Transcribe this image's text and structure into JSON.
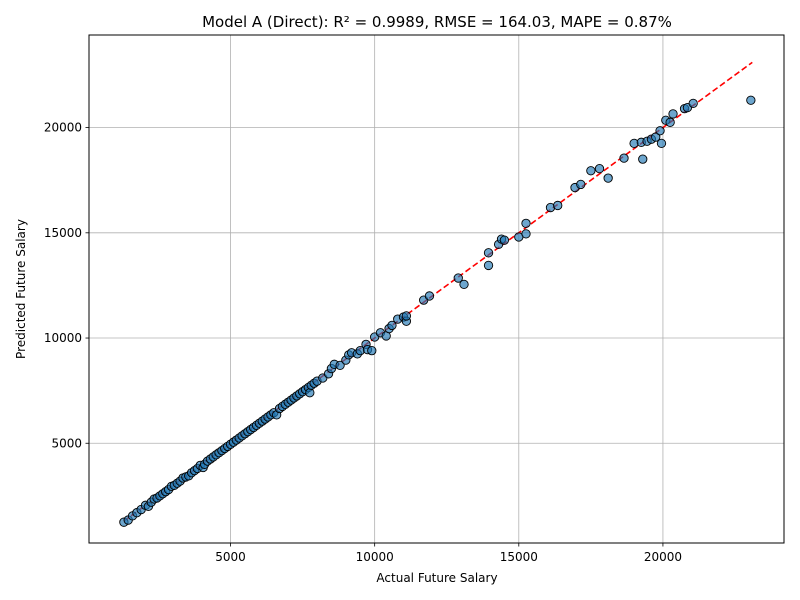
{
  "chart_data": {
    "type": "scatter",
    "title": "Model A (Direct): R² = 0.9989, RMSE = 164.03, MAPE = 0.87%",
    "xlabel": "Actual Future Salary",
    "ylabel": "Predicted Future Salary",
    "xlim": [
      90,
      24200
    ],
    "ylim": [
      260,
      24400
    ],
    "xticks": [
      5000,
      10000,
      15000,
      20000
    ],
    "yticks": [
      5000,
      10000,
      15000,
      20000
    ],
    "xtick_labels": [
      "5000",
      "10000",
      "15000",
      "20000"
    ],
    "ytick_labels": [
      "5000",
      "10000",
      "15000",
      "20000"
    ],
    "grid": true,
    "point_color": "#1f77b4",
    "point_edge_color": "#000000",
    "reference_line": {
      "x": [
        1300,
        23100
      ],
      "y": [
        1300,
        23100
      ],
      "color": "#ff0000",
      "style": "dashed"
    },
    "points": [
      [
        1300,
        1250
      ],
      [
        1450,
        1350
      ],
      [
        1600,
        1550
      ],
      [
        1750,
        1700
      ],
      [
        1900,
        1850
      ],
      [
        2050,
        2050
      ],
      [
        2150,
        2000
      ],
      [
        2250,
        2200
      ],
      [
        2350,
        2350
      ],
      [
        2450,
        2400
      ],
      [
        2550,
        2500
      ],
      [
        2650,
        2600
      ],
      [
        2750,
        2700
      ],
      [
        2850,
        2800
      ],
      [
        2950,
        2950
      ],
      [
        3050,
        3000
      ],
      [
        3150,
        3100
      ],
      [
        3250,
        3200
      ],
      [
        3350,
        3350
      ],
      [
        3450,
        3400
      ],
      [
        3550,
        3450
      ],
      [
        3650,
        3600
      ],
      [
        3750,
        3700
      ],
      [
        3850,
        3800
      ],
      [
        3950,
        3950
      ],
      [
        4050,
        3850
      ],
      [
        4100,
        4000
      ],
      [
        4200,
        4150
      ],
      [
        4300,
        4250
      ],
      [
        4400,
        4350
      ],
      [
        4500,
        4450
      ],
      [
        4600,
        4550
      ],
      [
        4700,
        4650
      ],
      [
        4800,
        4750
      ],
      [
        4900,
        4850
      ],
      [
        5000,
        4950
      ],
      [
        5100,
        5050
      ],
      [
        5200,
        5150
      ],
      [
        5300,
        5250
      ],
      [
        5400,
        5350
      ],
      [
        5500,
        5450
      ],
      [
        5600,
        5550
      ],
      [
        5700,
        5650
      ],
      [
        5800,
        5750
      ],
      [
        5900,
        5850
      ],
      [
        6000,
        5950
      ],
      [
        6100,
        6050
      ],
      [
        6200,
        6150
      ],
      [
        6300,
        6250
      ],
      [
        6400,
        6350
      ],
      [
        6500,
        6450
      ],
      [
        6600,
        6350
      ],
      [
        6700,
        6650
      ],
      [
        6800,
        6750
      ],
      [
        6900,
        6850
      ],
      [
        7000,
        6950
      ],
      [
        7100,
        7050
      ],
      [
        7200,
        7150
      ],
      [
        7300,
        7250
      ],
      [
        7400,
        7350
      ],
      [
        7500,
        7450
      ],
      [
        7600,
        7550
      ],
      [
        7700,
        7650
      ],
      [
        7750,
        7400
      ],
      [
        7800,
        7750
      ],
      [
        7900,
        7850
      ],
      [
        8000,
        7950
      ],
      [
        8200,
        8100
      ],
      [
        8400,
        8300
      ],
      [
        8500,
        8550
      ],
      [
        8600,
        8750
      ],
      [
        8800,
        8700
      ],
      [
        9000,
        8950
      ],
      [
        9100,
        9200
      ],
      [
        9200,
        9300
      ],
      [
        9400,
        9250
      ],
      [
        9500,
        9400
      ],
      [
        9700,
        9700
      ],
      [
        9750,
        9450
      ],
      [
        9900,
        9400
      ],
      [
        10000,
        10050
      ],
      [
        10200,
        10250
      ],
      [
        10400,
        10100
      ],
      [
        10500,
        10450
      ],
      [
        10600,
        10600
      ],
      [
        10800,
        10900
      ],
      [
        11000,
        11000
      ],
      [
        11100,
        10800
      ],
      [
        11100,
        11050
      ],
      [
        11700,
        11800
      ],
      [
        11900,
        12000
      ],
      [
        12900,
        12850
      ],
      [
        13100,
        12550
      ],
      [
        13950,
        13450
      ],
      [
        13950,
        14050
      ],
      [
        14300,
        14450
      ],
      [
        14400,
        14700
      ],
      [
        14500,
        14650
      ],
      [
        15000,
        14800
      ],
      [
        15250,
        14950
      ],
      [
        15250,
        15450
      ],
      [
        16100,
        16200
      ],
      [
        16350,
        16300
      ],
      [
        16950,
        17150
      ],
      [
        17150,
        17300
      ],
      [
        17500,
        17950
      ],
      [
        17800,
        18050
      ],
      [
        18100,
        17600
      ],
      [
        18650,
        18550
      ],
      [
        19000,
        19250
      ],
      [
        19250,
        19300
      ],
      [
        19300,
        18500
      ],
      [
        19450,
        19350
      ],
      [
        19600,
        19450
      ],
      [
        19750,
        19550
      ],
      [
        19900,
        19850
      ],
      [
        19950,
        19250
      ],
      [
        20100,
        20350
      ],
      [
        20250,
        20250
      ],
      [
        20350,
        20650
      ],
      [
        20750,
        20900
      ],
      [
        20850,
        20950
      ],
      [
        21050,
        21150
      ],
      [
        23050,
        21300
      ]
    ]
  }
}
